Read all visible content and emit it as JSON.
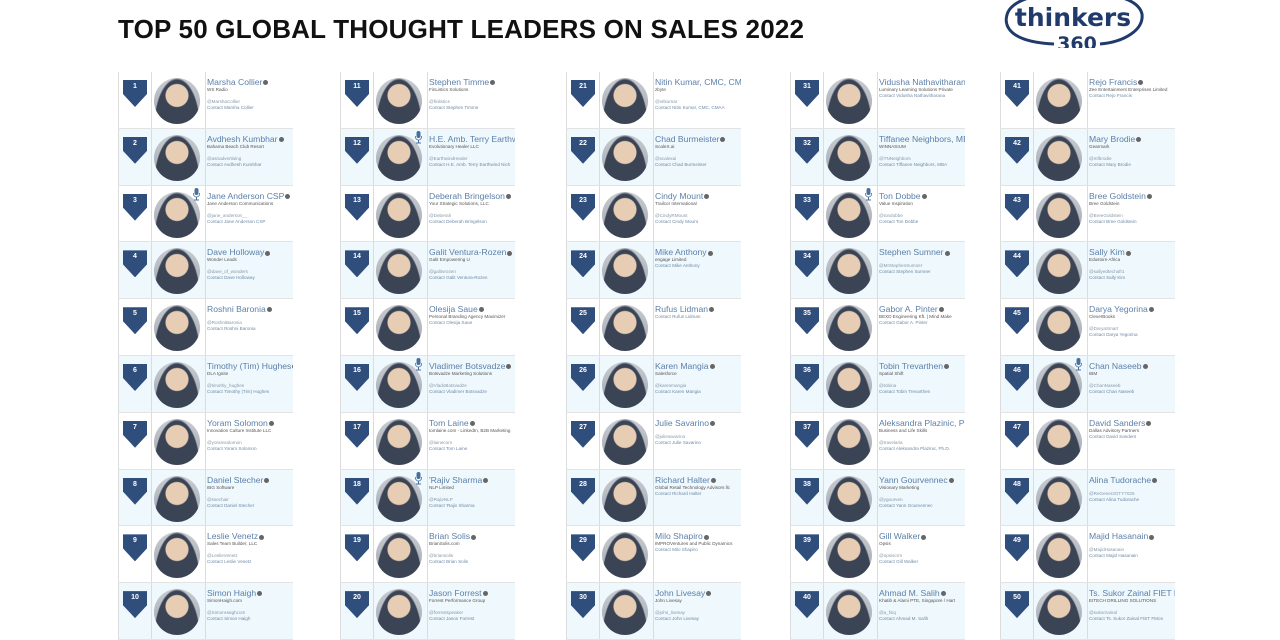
{
  "title": "TOP 50 GLOBAL THOUGHT LEADERS ON SALES 2022",
  "logo": {
    "word": "thinkers",
    "number": "360",
    "color": "#1f3a6b"
  },
  "colors": {
    "badge": "#2f4e7c",
    "row_alt": "#eef8fd",
    "name": "#5b7fa9"
  },
  "leaders": [
    {
      "rank": "1",
      "name": "Marsha Collier",
      "org": "WS Radio",
      "handle": "@MarshaCollier",
      "contact": "Contact Marsha Collier"
    },
    {
      "rank": "2",
      "name": "Avdhesh Kumbhar",
      "org": "Bahama Beach Club Resort",
      "handle": "@asriadvertising",
      "contact": "Contact Avdhesh Kumbhar"
    },
    {
      "rank": "3",
      "name": "Jane Anderson CSP",
      "org": "Jane Anderson Communications",
      "handle": "@jane_anderson__",
      "contact": "Contact Jane Anderson CSP",
      "mic": true
    },
    {
      "rank": "4",
      "name": "Dave Holloway",
      "org": "Wonder Leads",
      "handle": "@dave_of_wonders",
      "contact": "Contact Dave Holloway"
    },
    {
      "rank": "5",
      "name": "Roshni Baronia",
      "org": "",
      "handle": "@RoshniBaronia",
      "contact": "Contact Roshni Baronia"
    },
    {
      "rank": "6",
      "name": "Timothy (Tim) Hughes",
      "org": "DLA Ignite",
      "handle": "@timothy_hughes",
      "contact": "Contact Timothy (Tim) Hughes"
    },
    {
      "rank": "7",
      "name": "Yoram Solomon",
      "org": "Innovation Culture Institute LLC",
      "handle": "@yoramsolomon",
      "contact": "Contact Yoram Solomon"
    },
    {
      "rank": "8",
      "name": "Daniel Stecher",
      "org": "IBG Software",
      "handle": "@ssechair",
      "contact": "Contact Daniel Stecher"
    },
    {
      "rank": "9",
      "name": "Leslie Venetz",
      "org": "Sales Team Builder, LLC",
      "handle": "@LeslieVenetz",
      "contact": "Contact Leslie Venetz"
    },
    {
      "rank": "10",
      "name": "Simon Haigh",
      "org": "SimonHaigh.com",
      "handle": "@SimonHaighcom",
      "contact": "Contact Simon Haigh"
    },
    {
      "rank": "11",
      "name": "Stephen Timme",
      "org": "FinListics Solutions",
      "handle": "@finlistics",
      "contact": "Contact Stephen Timme"
    },
    {
      "rank": "12",
      "name": "H.E. Amb. Terry Earthwind",
      "org": "Evolutionary Healer LLC",
      "handle": "@EarthwindHealer",
      "contact": "Contact H.E. Amb. Terry Earthwind Nich",
      "mic": true,
      "noinfo": true
    },
    {
      "rank": "13",
      "name": "Deberah Bringelson",
      "org": "Your Strategic Solutions, LLC",
      "handle": "@Deberah",
      "contact": "Contact Deberah Bringelson"
    },
    {
      "rank": "14",
      "name": "Galit Ventura-Rozen",
      "org": "Galit Empowering U",
      "handle": "@galitvrozen",
      "contact": "Contact Galit Ventura-Rozen"
    },
    {
      "rank": "15",
      "name": "Olesija Saue",
      "org": "Personal Branding Agency Maximizer",
      "handle": "",
      "contact": "Contact Olesija Saue"
    },
    {
      "rank": "16",
      "name": "Vladimer Botsvadze",
      "org": "Botsvadze Marketing Solutions",
      "handle": "@VladoBotsvadze",
      "contact": "Contact Vladimer Botsvadze",
      "mic": true
    },
    {
      "rank": "17",
      "name": "Tom Laine",
      "org": "tomlaine.com - LinkedIn, B2B Marketing",
      "handle": "@lainecom",
      "contact": "Contact Tom Laine"
    },
    {
      "rank": "18",
      "name": "'Rajiv Sharma",
      "org": "NLP Limited",
      "handle": "@RajivNLP",
      "contact": "Contact 'Rajiv Sharma",
      "mic": true
    },
    {
      "rank": "19",
      "name": "Brian Solis",
      "org": "BrianSolis.com",
      "handle": "@briansolis",
      "contact": "Contact Brian Solis"
    },
    {
      "rank": "20",
      "name": "Jason Forrest",
      "org": "Forrest Performance Group",
      "handle": "@forrestspeaker",
      "contact": "Contact Jason Forrest"
    },
    {
      "rank": "21",
      "name": "Nitin Kumar, CMC, CMAA",
      "org": "zbyte",
      "handle": "@nitkumar",
      "contact": "Contact Nitin Kumar, CMC, CMAA",
      "noinfo": true
    },
    {
      "rank": "22",
      "name": "Chad Burmeister",
      "org": "ScaleX.ai",
      "handle": "@scalexai",
      "contact": "Contact Chad Burmeister"
    },
    {
      "rank": "23",
      "name": "Cindy Mount",
      "org": "Trailcor International",
      "handle": "@CindyRMount",
      "contact": "Contact Cindy Mount"
    },
    {
      "rank": "24",
      "name": "Mike Anthony",
      "org": "engage Limited",
      "handle": "",
      "contact": "Contact Mike Anthony"
    },
    {
      "rank": "25",
      "name": "Rufus Lidman",
      "org": "",
      "handle": "",
      "contact": "Contact Rufus Lidman"
    },
    {
      "rank": "26",
      "name": "Karen Mangia",
      "org": "Salesforce",
      "handle": "@karenmangia",
      "contact": "Contact Karen Mangia"
    },
    {
      "rank": "27",
      "name": "Julie Savarino",
      "org": "",
      "handle": "@juliesavarino",
      "contact": "Contact Julie Savarino"
    },
    {
      "rank": "28",
      "name": "Richard Halter",
      "org": "Global Retail Technology Advisors llc",
      "handle": "",
      "contact": "Contact Richard Halter"
    },
    {
      "rank": "29",
      "name": "Milo Shapiro",
      "org": "IMPROVentures and Public Dynamics",
      "handle": "",
      "contact": "Contact Milo Shapiro"
    },
    {
      "rank": "30",
      "name": "John Livesay",
      "org": "John Livesay",
      "handle": "@john_livesay",
      "contact": "Contact John Livesay"
    },
    {
      "rank": "31",
      "name": "Vidusha Nathavitharana",
      "org": "Luminary Learning Solutions Private",
      "handle": "",
      "contact": "Contact Vidusha Nathavitharana",
      "noinfo": true
    },
    {
      "rank": "32",
      "name": "Tiffanee Neighbors, MBA",
      "org": "WINNASIUM",
      "handle": "@TNNeighbors",
      "contact": "Contact Tiffanee Neighbors, MBA",
      "noinfo": true
    },
    {
      "rank": "33",
      "name": "Ton Dobbe",
      "org": "Value Inspiration",
      "handle": "@tondobbe",
      "contact": "Contact Ton Dobbe",
      "mic": true
    },
    {
      "rank": "34",
      "name": "Stephen Sumner",
      "org": "",
      "handle": "@MrStephenSumner",
      "contact": "Contact Stephen Sumner"
    },
    {
      "rank": "35",
      "name": "Gabor A. Pinter",
      "org": "BEXD Engineering Kft. | Mind Make",
      "handle": "",
      "contact": "Contact Gabor A. Pinter"
    },
    {
      "rank": "36",
      "name": "Tobin Trevarthen",
      "org": "Spatial Shift",
      "handle": "@tobina",
      "contact": "Contact Tobin Trevarthen"
    },
    {
      "rank": "37",
      "name": "Aleksandra Plazinic, Ph.D.",
      "org": "Business and Life Skills",
      "handle": "@travelaria",
      "contact": "Contact Aleksandra Plazinic, Ph.D.",
      "noinfo": true
    },
    {
      "rank": "38",
      "name": "Yann Gourvennec",
      "org": "Visionary Marketing",
      "handle": "@ygourven",
      "contact": "Contact Yann Gourvennec"
    },
    {
      "rank": "39",
      "name": "Gill Walker",
      "org": "Opsis",
      "handle": "@opsiscrm",
      "contact": "Contact Gill Walker"
    },
    {
      "rank": "40",
      "name": "Ahmad M. Salih",
      "org": "Khatib & Alami PTE, Singapore / Hart",
      "handle": "@a_fsiq",
      "contact": "Contact Ahmad M. Salih"
    },
    {
      "rank": "41",
      "name": "Rejo Francis",
      "org": "Zee Entertainment Enterprises Limited",
      "handle": "",
      "contact": "Contact Rejo Francis"
    },
    {
      "rank": "42",
      "name": "Mary Brodie",
      "org": "Gearmark",
      "handle": "@mfbrodie",
      "contact": "Contact Mary Brodie"
    },
    {
      "rank": "43",
      "name": "Bree Goldstein",
      "org": "Bree Goldstein",
      "handle": "@BreeGoldstein",
      "contact": "Contact Bree Goldstein"
    },
    {
      "rank": "44",
      "name": "Sally Kim",
      "org": "Edustore Africa",
      "handle": "@sallyedtechafr1",
      "contact": "Contact Sally Kim"
    },
    {
      "rank": "45",
      "name": "Darya Yegorina",
      "org": "CleverBooks",
      "handle": "@DaryaSmart",
      "contact": "Contact Darya Yegorina"
    },
    {
      "rank": "46",
      "name": "Chan Naseeb",
      "org": "IBM",
      "handle": "@ChanNaseeb",
      "contact": "Contact Chan Naseeb",
      "mic": true
    },
    {
      "rank": "47",
      "name": "David Sanders",
      "org": "Dallas Advisory Partners",
      "handle": "",
      "contact": "Contact David Sanders"
    },
    {
      "rank": "48",
      "name": "Alina Tudorache",
      "org": "",
      "handle": "@ReGener3GTY7025",
      "contact": "Contact Alina Tudorache"
    },
    {
      "rank": "49",
      "name": "Majid Hasanain",
      "org": "",
      "handle": "@MajidHasanain",
      "contact": "Contact Majid Hasanain"
    },
    {
      "rank": "50",
      "name": "Ts. Sukor Zainal FIET F",
      "org": "EITECH DRILLING SOLUTIONS",
      "handle": "@sukorzainal",
      "contact": "Contact Ts. Sukor Zainal FIET FMon",
      "noinfo": true
    }
  ]
}
